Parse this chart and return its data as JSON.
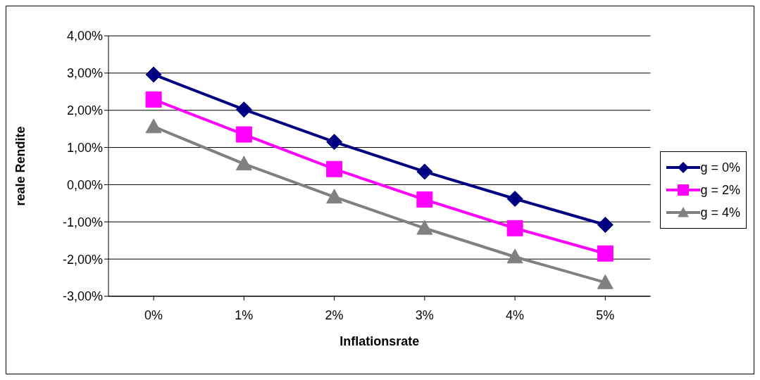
{
  "chart_data": {
    "type": "line",
    "xlabel": "Inflationsrate",
    "ylabel": "reale Rendite",
    "categories": [
      "0%",
      "1%",
      "2%",
      "3%",
      "4%",
      "5%"
    ],
    "series": [
      {
        "name": "g = 0%",
        "color": "#000080",
        "marker": "diamond",
        "values": [
          2.96,
          2.02,
          1.15,
          0.35,
          -0.38,
          -1.08
        ]
      },
      {
        "name": "g = 2%",
        "color": "#ff00ff",
        "marker": "square",
        "values": [
          2.29,
          1.35,
          0.42,
          -0.4,
          -1.17,
          -1.85
        ]
      },
      {
        "name": "g = 4%",
        "color": "#808080",
        "marker": "triangle",
        "values": [
          1.56,
          0.56,
          -0.33,
          -1.17,
          -1.94,
          -2.63
        ]
      }
    ],
    "ylim": [
      -3,
      4
    ],
    "yticks": [
      {
        "value": -3,
        "label": "-3,00%"
      },
      {
        "value": -2,
        "label": "-2,00%"
      },
      {
        "value": -1,
        "label": "-1,00%"
      },
      {
        "value": 0,
        "label": "0,00%"
      },
      {
        "value": 1,
        "label": "1,00%"
      },
      {
        "value": 2,
        "label": "2,00%"
      },
      {
        "value": 3,
        "label": "3,00%"
      },
      {
        "value": 4,
        "label": "4,00%"
      }
    ],
    "grid": "y",
    "legend": "right",
    "line_style": "solid"
  }
}
